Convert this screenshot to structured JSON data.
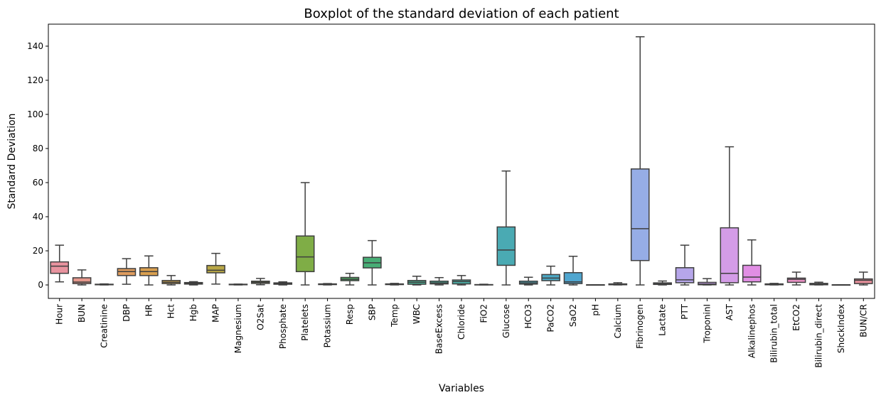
{
  "chart_data": {
    "type": "boxplot",
    "title": "Boxplot of the standard deviation of each patient",
    "xlabel": "Variables",
    "ylabel": "Standard Deviation",
    "ylim": [
      -7.9,
      152.9
    ],
    "yticks": [
      0,
      20,
      40,
      60,
      80,
      100,
      120,
      140
    ],
    "grid": false,
    "line_color": "#3f3f3f",
    "categories": [
      "Hour",
      "BUN",
      "Creatinine",
      "DBP",
      "HR",
      "Hct",
      "Hgb",
      "MAP",
      "Magnesium",
      "O2Sat",
      "Phosphate",
      "Platelets",
      "Potassium",
      "Resp",
      "SBP",
      "Temp",
      "WBC",
      "BaseExcess",
      "Chloride",
      "FiO2",
      "Glucose",
      "HCO3",
      "PaCO2",
      "SaO2",
      "pH",
      "Calcium",
      "Fibrinogen",
      "Lactate",
      "PTT",
      "TroponinI",
      "AST",
      "Alkalinephos",
      "Bilirubin_total",
      "EtCO2",
      "Bilirubin_direct",
      "ShockIndex",
      "BUN/CR"
    ],
    "boxes": [
      {
        "whislo": 1.8,
        "q1": 6.8,
        "med": 11,
        "q3": 13.5,
        "whishi": 23.3
      },
      {
        "whislo": 0,
        "q1": 0.8,
        "med": 1.7,
        "q3": 4.2,
        "whishi": 8.8
      },
      {
        "whislo": 0,
        "q1": 0.1,
        "med": 0.25,
        "q3": 0.4,
        "whishi": 0.6
      },
      {
        "whislo": 0.4,
        "q1": 5.5,
        "med": 7.8,
        "q3": 9.6,
        "whishi": 15.4
      },
      {
        "whislo": 0,
        "q1": 5.5,
        "med": 7.8,
        "q3": 10.1,
        "whishi": 17
      },
      {
        "whislo": 0,
        "q1": 0.8,
        "med": 1.6,
        "q3": 2.6,
        "whishi": 5.5
      },
      {
        "whislo": 0,
        "q1": 0.5,
        "med": 0.9,
        "q3": 1.4,
        "whishi": 1.9
      },
      {
        "whislo": 0.5,
        "q1": 7.1,
        "med": 8.6,
        "q3": 11.4,
        "whishi": 18.5
      },
      {
        "whislo": 0,
        "q1": 0.1,
        "med": 0.25,
        "q3": 0.4,
        "whishi": 0.5
      },
      {
        "whislo": 0.1,
        "q1": 0.9,
        "med": 1.5,
        "q3": 2.2,
        "whishi": 3.8
      },
      {
        "whislo": 0,
        "q1": 0.4,
        "med": 0.8,
        "q3": 1.2,
        "whishi": 1.8
      },
      {
        "whislo": 0,
        "q1": 7.8,
        "med": 16.4,
        "q3": 28.7,
        "whishi": 60
      },
      {
        "whislo": 0,
        "q1": 0.2,
        "med": 0.4,
        "q3": 0.6,
        "whishi": 0.8
      },
      {
        "whislo": 0,
        "q1": 2.5,
        "med": 3.3,
        "q3": 4.4,
        "whishi": 6.8
      },
      {
        "whislo": 0,
        "q1": 10,
        "med": 13,
        "q3": 16.2,
        "whishi": 26
      },
      {
        "whislo": 0,
        "q1": 0.2,
        "med": 0.4,
        "q3": 0.6,
        "whishi": 0.9
      },
      {
        "whislo": 0,
        "q1": 0.4,
        "med": 1.6,
        "q3": 2.6,
        "whishi": 5.1
      },
      {
        "whislo": 0,
        "q1": 0.6,
        "med": 1.2,
        "q3": 2.2,
        "whishi": 4.3
      },
      {
        "whislo": 0,
        "q1": 0.6,
        "med": 2,
        "q3": 2.9,
        "whishi": 5.5
      },
      {
        "whislo": 0,
        "q1": 0.05,
        "med": 0.1,
        "q3": 0.2,
        "whishi": 0.4
      },
      {
        "whislo": 0,
        "q1": 11.5,
        "med": 20.5,
        "q3": 34,
        "whishi": 66.8
      },
      {
        "whislo": 0,
        "q1": 0.5,
        "med": 1.2,
        "q3": 2.2,
        "whishi": 4.5
      },
      {
        "whislo": 0,
        "q1": 2.5,
        "med": 4,
        "q3": 6.1,
        "whishi": 11
      },
      {
        "whislo": 0,
        "q1": 0.8,
        "med": 1.8,
        "q3": 7.2,
        "whishi": 16.8
      },
      {
        "whislo": 0.02,
        "q1": 0.04,
        "med": 0.05,
        "q3": 0.07,
        "whishi": 0.1
      },
      {
        "whislo": 0,
        "q1": 0.1,
        "med": 0.3,
        "q3": 0.6,
        "whishi": 1.3
      },
      {
        "whislo": 0,
        "q1": 14.3,
        "med": 33,
        "q3": 68,
        "whishi": 145.5
      },
      {
        "whislo": 0,
        "q1": 0.3,
        "med": 0.7,
        "q3": 1.2,
        "whishi": 2.3
      },
      {
        "whislo": 0,
        "q1": 1.3,
        "med": 3,
        "q3": 10.1,
        "whishi": 23.3
      },
      {
        "whislo": 0,
        "q1": 0.1,
        "med": 0.5,
        "q3": 1.5,
        "whishi": 3.7
      },
      {
        "whislo": 0,
        "q1": 1.3,
        "med": 6.8,
        "q3": 33.5,
        "whishi": 81
      },
      {
        "whislo": 0,
        "q1": 1.8,
        "med": 4.6,
        "q3": 11.5,
        "whishi": 26.4
      },
      {
        "whislo": 0,
        "q1": 0.1,
        "med": 0.3,
        "q3": 0.6,
        "whishi": 0.9
      },
      {
        "whislo": 0,
        "q1": 1.5,
        "med": 3.3,
        "q3": 4,
        "whishi": 7.5
      },
      {
        "whislo": 0,
        "q1": 0.1,
        "med": 0.4,
        "q3": 0.9,
        "whishi": 1.6
      },
      {
        "whislo": 0,
        "q1": 0.02,
        "med": 0.05,
        "q3": 0.07,
        "whishi": 0.1
      },
      {
        "whislo": 0,
        "q1": 0.8,
        "med": 2.7,
        "q3": 3.5,
        "whishi": 7.5
      }
    ],
    "colors": [
      "#e8939f",
      "#e6988c",
      "#e49b7c",
      "#df9c5e",
      "#d99f4f",
      "#cfa34a",
      "#c4a548",
      "#b8a746",
      "#aaa945",
      "#9aab45",
      "#8bad46",
      "#7fad46",
      "#62ae55",
      "#4caf64",
      "#48ae76",
      "#49ae85",
      "#4aad91",
      "#4aad9b",
      "#4aaca4",
      "#4aabab",
      "#4aaab3",
      "#4ba9bb",
      "#4ca8c4",
      "#4fa6d0",
      "#66a2de",
      "#83a6e4",
      "#96ade6",
      "#a5aae8",
      "#b6a6ea",
      "#c4a1ea",
      "#d49ce7",
      "#e18ee4",
      "#e58cd4",
      "#e68fc2",
      "#e791b2",
      "#e8929f",
      "#e8909c"
    ]
  }
}
